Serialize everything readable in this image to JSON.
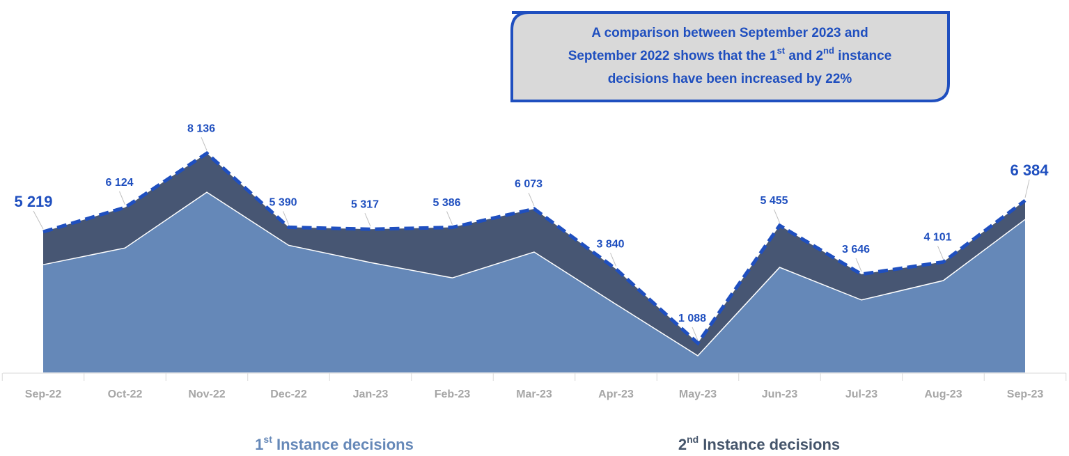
{
  "chart_data": {
    "type": "stacked_area",
    "categories": [
      "Sep-22",
      "Oct-22",
      "Nov-22",
      "Dec-22",
      "Jan-23",
      "Feb-23",
      "Mar-23",
      "Apr-23",
      "May-23",
      "Jun-23",
      "Jul-23",
      "Aug-23",
      "Sep-23"
    ],
    "series": [
      {
        "name": "1st Instance decisions",
        "color": "#6588b8",
        "values": [
          4000,
          4620,
          6690,
          4720,
          4080,
          3510,
          4470,
          2530,
          620,
          3900,
          2690,
          3410,
          5680
        ]
      },
      {
        "name": "2nd Instance decisions",
        "color": "#475673",
        "values": [
          1219,
          1504,
          1446,
          670,
          1237,
          1876,
          1603,
          1310,
          468,
          1555,
          956,
          691,
          704
        ]
      }
    ],
    "totals": [
      5219,
      6124,
      8136,
      5390,
      5317,
      5386,
      6073,
      3840,
      1088,
      5455,
      3646,
      4101,
      6384
    ],
    "value_labels": [
      "5 219",
      "6 124",
      "8 136",
      "5 390",
      "5 317",
      "5 386",
      "6 073",
      "3 840",
      "1 088",
      "5 455",
      "3 646",
      "4 101",
      "6 384"
    ],
    "total_line_color": "#1f4fbf",
    "ylim": [
      0,
      10000
    ],
    "annotation": [
      [
        "A comparison between  September 2023 and"
      ],
      [
        "September 2022 shows that the 1",
        "st",
        " and 2",
        "nd",
        " instance"
      ],
      [
        "decisions have been increased by 22%"
      ]
    ]
  }
}
